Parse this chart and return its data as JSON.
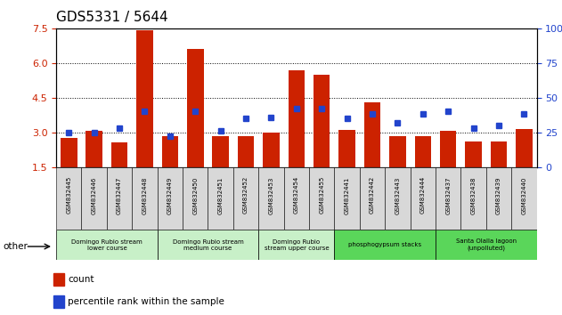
{
  "title": "GDS5331 / 5644",
  "samples": [
    "GSM832445",
    "GSM832446",
    "GSM832447",
    "GSM832448",
    "GSM832449",
    "GSM832450",
    "GSM832451",
    "GSM832452",
    "GSM832453",
    "GSM832454",
    "GSM832455",
    "GSM832441",
    "GSM832442",
    "GSM832443",
    "GSM832444",
    "GSM832437",
    "GSM832438",
    "GSM832439",
    "GSM832440"
  ],
  "count": [
    2.75,
    3.05,
    2.55,
    7.4,
    2.85,
    6.6,
    2.85,
    2.85,
    3.0,
    5.7,
    5.5,
    3.1,
    4.3,
    2.85,
    2.85,
    3.05,
    2.6,
    2.6,
    3.15
  ],
  "percentile": [
    25,
    25,
    28,
    40,
    22,
    40,
    26,
    35,
    36,
    42,
    42,
    35,
    38,
    32,
    38,
    40,
    28,
    30,
    38
  ],
  "ylim_left": [
    1.5,
    7.5
  ],
  "ylim_right": [
    0,
    100
  ],
  "yticks_left": [
    1.5,
    3.0,
    4.5,
    6.0,
    7.5
  ],
  "yticks_right": [
    0,
    25,
    50,
    75,
    100
  ],
  "groups": [
    {
      "label": "Domingo Rubio stream\nlower course",
      "start": 0,
      "end": 4,
      "color": "#c8f0c8"
    },
    {
      "label": "Domingo Rubio stream\nmedium course",
      "start": 4,
      "end": 8,
      "color": "#c8f0c8"
    },
    {
      "label": "Domingo Rubio\nstream upper course",
      "start": 8,
      "end": 11,
      "color": "#c8f0c8"
    },
    {
      "label": "phosphogypsum stacks",
      "start": 11,
      "end": 15,
      "color": "#5ad65a"
    },
    {
      "label": "Santa Olalla lagoon\n(unpolluted)",
      "start": 15,
      "end": 19,
      "color": "#5ad65a"
    }
  ],
  "bar_color": "#cc2200",
  "dot_color": "#2244cc",
  "title_fontsize": 11,
  "axis_label_color_left": "#cc2200",
  "axis_label_color_right": "#2244cc",
  "legend_items": [
    "count",
    "percentile rank within the sample"
  ]
}
